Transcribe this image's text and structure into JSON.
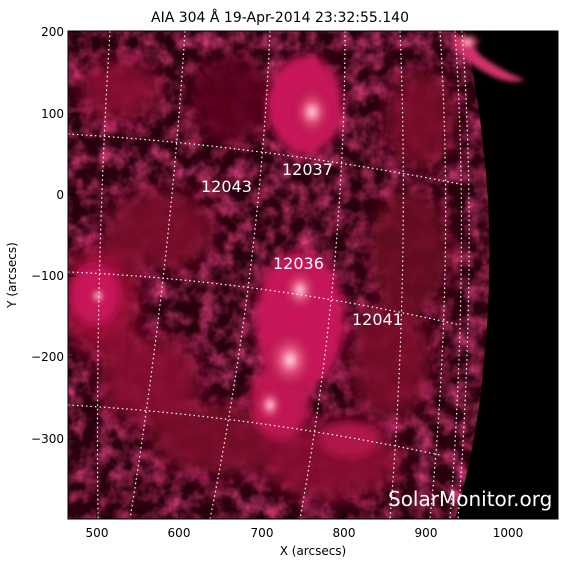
{
  "title": "AIA 304 Å 19-Apr-2014 23:32:55.140",
  "x_axis": {
    "label": "X (arcsecs)",
    "ticks": [
      "500",
      "600",
      "700",
      "800",
      "900",
      "1000"
    ]
  },
  "y_axis": {
    "label": "Y (arcsecs)",
    "ticks": [
      "200",
      "100",
      "0",
      "−100",
      "−200",
      "−300"
    ]
  },
  "active_regions": [
    {
      "id": "12037",
      "label": "12037"
    },
    {
      "id": "12043",
      "label": "12043"
    },
    {
      "id": "12036",
      "label": "12036"
    },
    {
      "id": "12041",
      "label": "12041"
    }
  ],
  "watermark": "SolarMonitor.org",
  "colors": {
    "background": "#000000",
    "emission_dark": "#3a0010",
    "emission_mid": "#a8103a",
    "emission_bright": "#ffd6e0",
    "grid": "#ffffff"
  }
}
